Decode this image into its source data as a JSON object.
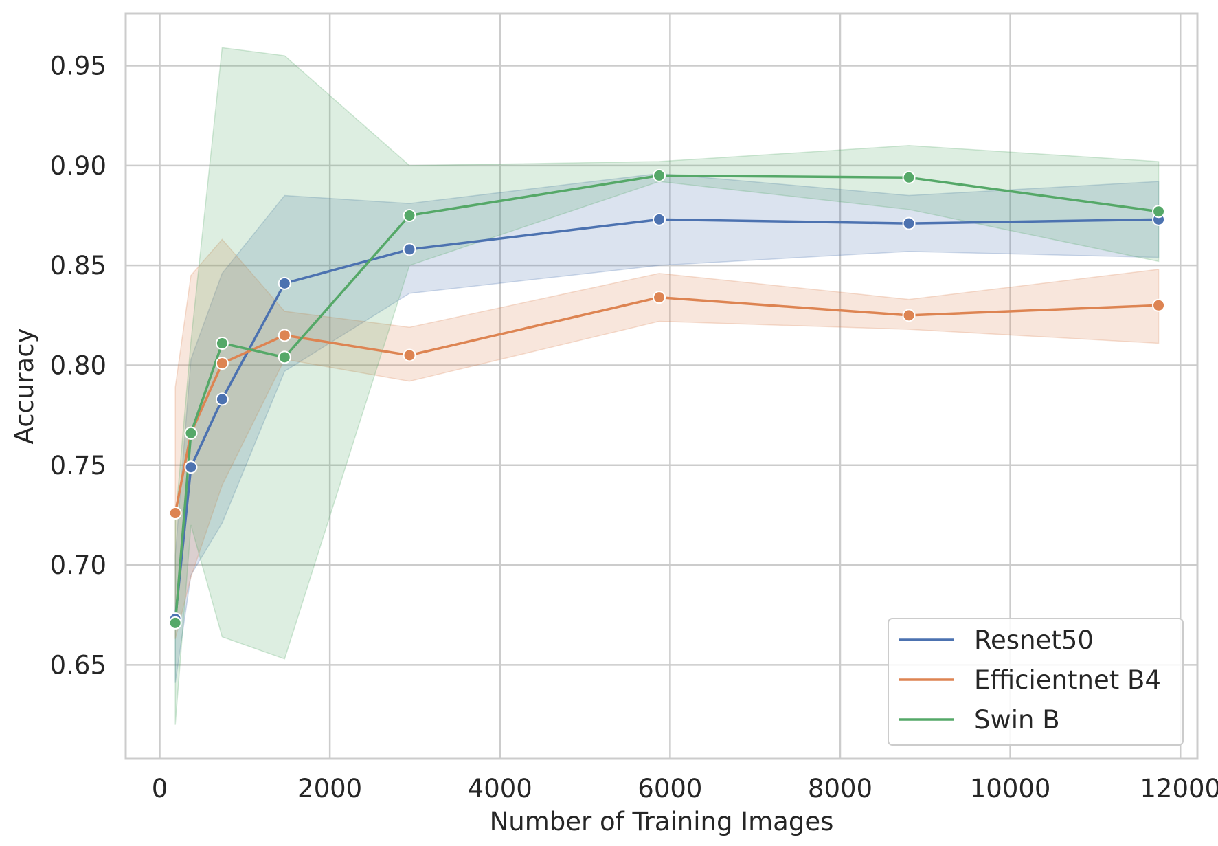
{
  "chart_data": {
    "type": "line",
    "title": "",
    "xlabel": "Number of Training Images",
    "ylabel": "Accuracy",
    "xlim": [
      -400,
      12200
    ],
    "ylim": [
      0.603,
      0.976
    ],
    "xticks": [
      0,
      2000,
      4000,
      6000,
      8000,
      10000,
      12000
    ],
    "xtick_labels": [
      "0",
      "2000",
      "4000",
      "6000",
      "8000",
      "10000",
      "12000"
    ],
    "yticks": [
      0.65,
      0.7,
      0.75,
      0.8,
      0.85,
      0.9,
      0.95
    ],
    "ytick_labels": [
      "0.65",
      "0.70",
      "0.75",
      "0.80",
      "0.85",
      "0.90",
      "0.95"
    ],
    "grid": true,
    "legend_position": "bottom-right",
    "x": [
      183,
      367,
      734,
      1468,
      2936,
      5872,
      8808,
      11744
    ],
    "series": [
      {
        "name": "Resnet50",
        "color": "#4c72b0",
        "values": [
          0.673,
          0.749,
          0.783,
          0.841,
          0.858,
          0.873,
          0.871,
          0.873
        ],
        "ci_lower": [
          0.641,
          0.695,
          0.721,
          0.797,
          0.836,
          0.85,
          0.857,
          0.854
        ],
        "ci_upper": [
          0.705,
          0.803,
          0.846,
          0.885,
          0.881,
          0.896,
          0.885,
          0.892
        ]
      },
      {
        "name": "Efficientnet B4",
        "color": "#dd8452",
        "values": [
          0.726,
          0.766,
          0.801,
          0.815,
          0.805,
          0.834,
          0.825,
          0.83
        ],
        "ci_lower": [
          0.663,
          0.694,
          0.74,
          0.803,
          0.792,
          0.822,
          0.818,
          0.811
        ],
        "ci_upper": [
          0.789,
          0.845,
          0.863,
          0.827,
          0.819,
          0.846,
          0.833,
          0.848
        ]
      },
      {
        "name": "Swin B",
        "color": "#55a868",
        "values": [
          0.671,
          0.766,
          0.811,
          0.804,
          0.875,
          0.895,
          0.894,
          0.877
        ],
        "ci_lower": [
          0.62,
          0.72,
          0.664,
          0.653,
          0.85,
          0.892,
          0.878,
          0.852
        ],
        "ci_upper": [
          0.722,
          0.812,
          0.959,
          0.955,
          0.9,
          0.902,
          0.91,
          0.902
        ]
      }
    ]
  }
}
